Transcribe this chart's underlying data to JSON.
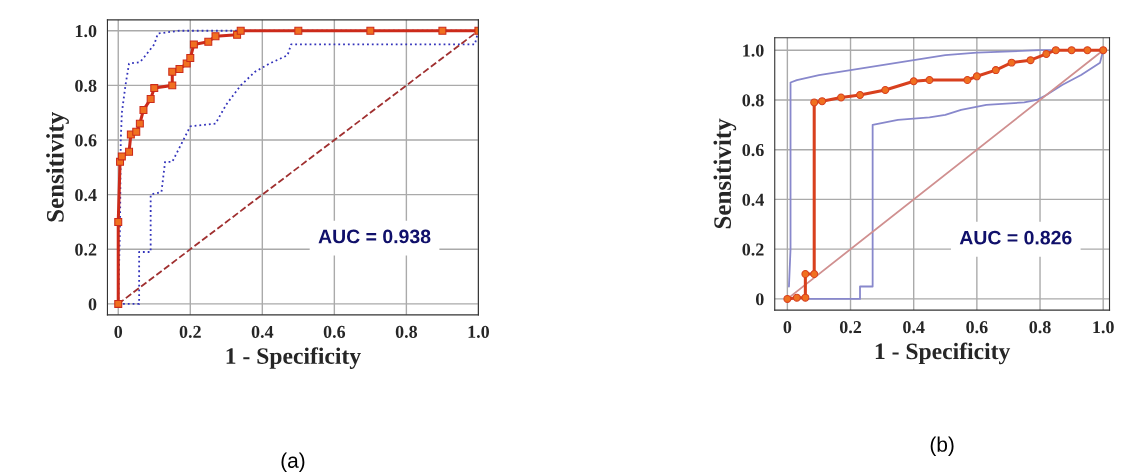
{
  "chart_data": [
    {
      "type": "line",
      "xlabel": "1 - Specificity",
      "ylabel": "Sensitivity",
      "xlim": [
        -0.03,
        1.0
      ],
      "ylim": [
        -0.04,
        1.04
      ],
      "grid": true,
      "xticks": [
        0,
        0.2,
        0.4,
        0.6,
        0.8,
        {
          "value": 1,
          "label": "1.0"
        }
      ],
      "yticks": [
        0,
        0.2,
        0.4,
        0.6,
        0.8,
        {
          "value": 1,
          "label": "1.0"
        }
      ],
      "annotations": [
        "AUC = 0.938",
        "(a)"
      ],
      "series": [
        {
          "color": "#3333bb",
          "line_style": "dotted",
          "marker": "none",
          "x": [
            0,
            0.005,
            0.007,
            0.01,
            0.02,
            0.03,
            0.06,
            0.07,
            0.1,
            0.11,
            0.17,
            1
          ],
          "values": [
            0,
            0.3,
            0.6,
            0.7,
            0.8,
            0.88,
            0.885,
            0.9,
            0.95,
            0.99,
            1,
            1
          ]
        },
        {
          "color": "#3333bb",
          "line_style": "dotted",
          "marker": "none",
          "x": [
            0.0,
            0.058,
            0.058,
            0.09,
            0.09,
            0.12,
            0.13,
            0.15,
            0.2,
            0.27,
            0.3,
            0.34,
            0.38,
            0.42,
            0.47,
            0.48,
            0.99,
            1.0
          ],
          "values": [
            0,
            0,
            0.19,
            0.19,
            0.4,
            0.41,
            0.52,
            0.52,
            0.65,
            0.66,
            0.73,
            0.8,
            0.85,
            0.88,
            0.91,
            0.95,
            0.95,
            1
          ]
        },
        {
          "color": "#a03030",
          "line_style": "dashed",
          "marker": "none",
          "x": [
            0,
            1
          ],
          "values": [
            0,
            1
          ]
        },
        {
          "color": "#cc2a1a",
          "line_style": "solid",
          "marker": "square",
          "x": [
            0,
            0,
            0.005,
            0.01,
            0.03,
            0.035,
            0.05,
            0.06,
            0.07,
            0.09,
            0.1,
            0.15,
            0.15,
            0.17,
            0.19,
            0.2,
            0.21,
            0.25,
            0.27,
            0.33,
            0.34,
            0.5,
            0.7,
            0.9,
            1
          ],
          "values": [
            0,
            0.3,
            0.52,
            0.54,
            0.557,
            0.62,
            0.63,
            0.66,
            0.71,
            0.75,
            0.79,
            0.8,
            0.85,
            0.86,
            0.88,
            0.9,
            0.95,
            0.96,
            0.98,
            0.985,
            1,
            1,
            1,
            1,
            1
          ]
        }
      ]
    },
    {
      "type": "line",
      "xlabel": "1 - Specificity",
      "ylabel": "Sensitivity",
      "xlim": [
        -0.04,
        1.02
      ],
      "ylim": [
        -0.045,
        1.05
      ],
      "grid": true,
      "xticks": [
        0,
        0.2,
        0.4,
        0.6,
        0.8,
        {
          "value": 1,
          "label": "1.0"
        }
      ],
      "yticks": [
        0,
        0.2,
        0.4,
        0.6,
        0.8,
        {
          "value": 1,
          "label": "1.0"
        }
      ],
      "annotations": [
        "AUC = 0.826",
        "(b)"
      ],
      "series": [
        {
          "color": "#8888cc",
          "line_style": "solid",
          "marker": "none",
          "x": [
            0.005,
            0.01,
            0.01,
            0.03,
            0.1,
            0.2,
            0.3,
            0.4,
            0.5,
            0.6,
            0.8,
            1
          ],
          "values": [
            0.05,
            0.2,
            0.87,
            0.88,
            0.9,
            0.92,
            0.94,
            0.96,
            0.98,
            0.99,
            1,
            1
          ]
        },
        {
          "color": "#8888cc",
          "line_style": "solid",
          "marker": "none",
          "x": [
            0.06,
            0.23,
            0.23,
            0.27,
            0.27,
            0.35,
            0.45,
            0.5,
            0.55,
            0.63,
            0.75,
            0.79,
            0.82,
            0.87,
            0.93,
            0.99,
            1
          ],
          "values": [
            0,
            0,
            0.05,
            0.05,
            0.7,
            0.72,
            0.73,
            0.74,
            0.76,
            0.78,
            0.79,
            0.8,
            0.82,
            0.86,
            0.9,
            0.95,
            1
          ]
        },
        {
          "color": "#d09090",
          "line_style": "solid",
          "marker": "none",
          "x": [
            0,
            1
          ],
          "values": [
            0,
            1
          ]
        },
        {
          "color": "#d8401e",
          "line_style": "solid",
          "marker": "circle",
          "x": [
            0,
            0.03,
            0.057,
            0.057,
            0.085,
            0.085,
            0.11,
            0.17,
            0.23,
            0.31,
            0.4,
            0.45,
            0.57,
            0.6,
            0.66,
            0.71,
            0.77,
            0.82,
            0.85,
            0.9,
            0.95,
            1
          ],
          "values": [
            0,
            0.005,
            0.005,
            0.1,
            0.1,
            0.79,
            0.795,
            0.81,
            0.82,
            0.84,
            0.875,
            0.88,
            0.88,
            0.895,
            0.92,
            0.95,
            0.96,
            0.985,
            1,
            1,
            1,
            1
          ]
        }
      ]
    }
  ]
}
